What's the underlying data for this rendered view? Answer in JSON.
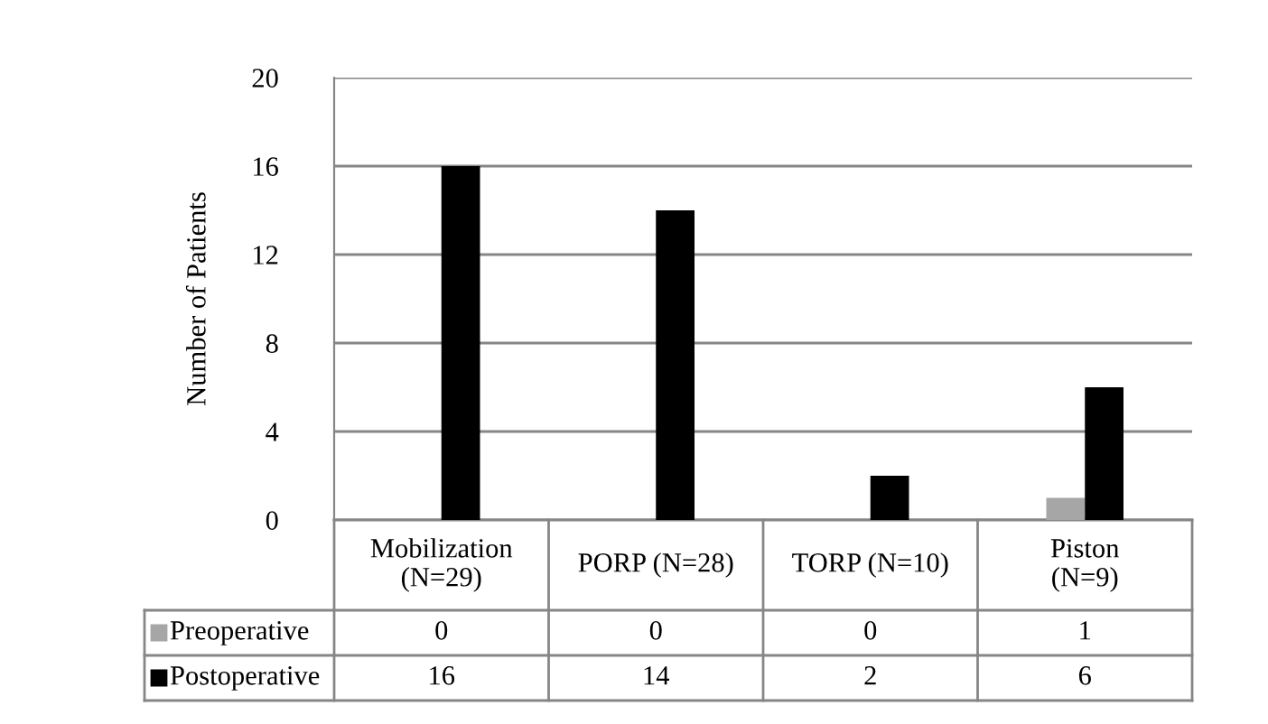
{
  "chart_data": {
    "type": "bar",
    "ylabel": "Number of Patients",
    "categories": [
      "Mobilization\n(N=29)",
      "PORP (N=28)",
      "TORP (N=10)",
      "Piston\n(N=9)"
    ],
    "series": [
      {
        "name": "Preoperative",
        "color": "#a6a6a6",
        "values": [
          0,
          0,
          0,
          1
        ]
      },
      {
        "name": "Postoperative",
        "color": "#000000",
        "values": [
          16,
          14,
          2,
          6
        ]
      }
    ],
    "ylim": [
      0,
      20
    ],
    "yticks": [
      0,
      4,
      8,
      12,
      16,
      20
    ],
    "grid": "y",
    "data_labels": true,
    "legend": "bottom"
  }
}
